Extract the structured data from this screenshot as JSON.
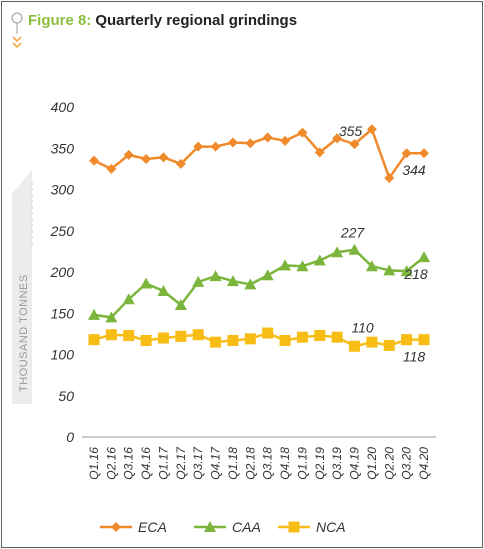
{
  "header": {
    "figure_label": "Figure 8:",
    "title": "Quarterly regional grindings"
  },
  "chart_data": {
    "type": "line",
    "title": "Quarterly regional grindings",
    "ylabel": "THOUSAND TONNES",
    "xlabel": "",
    "ylim": [
      0,
      400
    ],
    "yticks": [
      0,
      50,
      100,
      150,
      200,
      250,
      300,
      350,
      400
    ],
    "grid": false,
    "legend_position": "bottom",
    "categories": [
      "Q1.16",
      "Q2.16",
      "Q3.16",
      "Q4.16",
      "Q1.17",
      "Q2.17",
      "Q3.17",
      "Q4.17",
      "Q1.18",
      "Q2.18",
      "Q3.18",
      "Q4.18",
      "Q1.19",
      "Q2.19",
      "Q3.19",
      "Q4.19",
      "Q1.20",
      "Q2.20",
      "Q3.20",
      "Q4.20"
    ],
    "series": [
      {
        "name": "ECA",
        "color": "#f08a2b",
        "marker": "diamond",
        "values": [
          335,
          325,
          342,
          337,
          339,
          331,
          352,
          352,
          357,
          356,
          363,
          359,
          369,
          345,
          362,
          355,
          373,
          314,
          344,
          344
        ]
      },
      {
        "name": "CAA",
        "color": "#7bb53b",
        "marker": "triangle",
        "values": [
          148,
          145,
          167,
          186,
          177,
          160,
          188,
          195,
          189,
          185,
          196,
          208,
          207,
          214,
          224,
          227,
          207,
          202,
          201,
          218
        ]
      },
      {
        "name": "NCA",
        "color": "#f8bd14",
        "marker": "square",
        "values": [
          118,
          124,
          123,
          117,
          120,
          122,
          124,
          115,
          117,
          119,
          126,
          117,
          121,
          123,
          121,
          110,
          115,
          111,
          118,
          118
        ]
      }
    ],
    "annotations": [
      {
        "series": "ECA",
        "index": 15,
        "text": "355"
      },
      {
        "series": "ECA",
        "index": 19,
        "text": "344"
      },
      {
        "series": "CAA",
        "index": 15,
        "text": "227"
      },
      {
        "series": "CAA",
        "index": 19,
        "text": "218"
      },
      {
        "series": "NCA",
        "index": 15,
        "text": "110"
      },
      {
        "series": "NCA",
        "index": 19,
        "text": "118"
      }
    ]
  }
}
